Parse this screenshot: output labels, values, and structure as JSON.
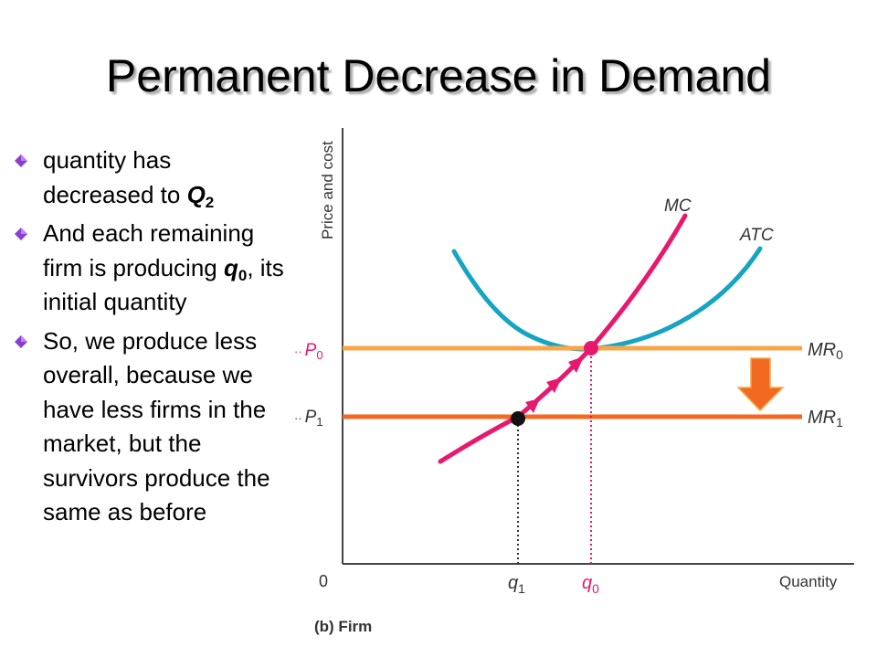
{
  "slide": {
    "title": "Permanent Decrease in Demand",
    "bullets": [
      {
        "before": "quantity has decreased to ",
        "var": "Q",
        "sub": "2",
        "after": ""
      },
      {
        "before": "And each remaining firm is producing ",
        "var": "q",
        "sub": "0",
        "after": ", its initial quantity"
      },
      {
        "before": "So, we produce less overall, because we have less firms in the market, but the survivors produce the same as before",
        "var": "",
        "sub": "",
        "after": ""
      }
    ]
  },
  "graph": {
    "y_axis_label": "Price and cost",
    "x_axis_label": "Quantity",
    "origin_label": "0",
    "caption": "(b) Firm",
    "curves": {
      "mc": "MC",
      "atc": "ATC"
    },
    "mr0": {
      "name": "MR",
      "sub": "0"
    },
    "mr1": {
      "name": "MR",
      "sub": "1"
    },
    "p0": {
      "name": "P",
      "sub": "0",
      "prefix": "··"
    },
    "p1": {
      "name": "P",
      "sub": "1",
      "prefix": "··"
    },
    "q1": {
      "name": "q",
      "sub": "1"
    },
    "q0": {
      "name": "q",
      "sub": "0"
    }
  },
  "colors": {
    "mc": "#e8186e",
    "atc": "#17a4c2",
    "mr0": "#f9a64a",
    "mr1": "#f26a22",
    "arrow": "#f26a22",
    "axis": "#444444",
    "bullet": "#8a3fd0"
  }
}
